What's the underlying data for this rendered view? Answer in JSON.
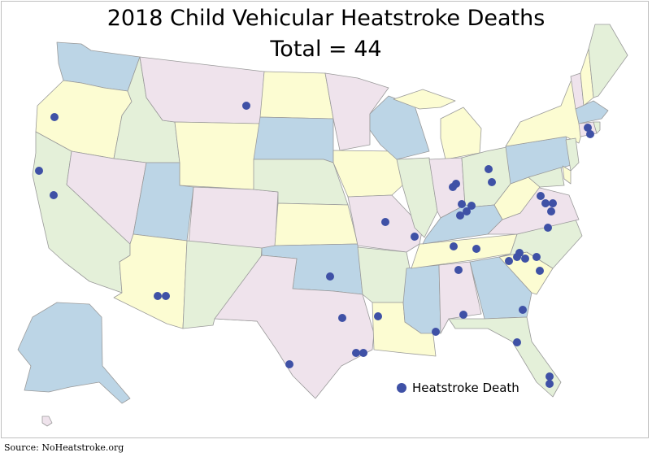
{
  "title_line1": "2018 Child Vehicular Heatstroke Deaths",
  "title_line2": "Total = 44",
  "legend_label": "Heatstroke Death",
  "source": "Source: NoHeatstroke.org",
  "colors": {
    "pink": "#efe3ec",
    "yellow": "#fcfcd2",
    "green": "#e4f0d9",
    "blue": "#bcd5e6",
    "dot": "#3f51a6",
    "border": "#9a9a9a"
  },
  "death_markers": [
    {
      "state": "Oregon"
    },
    {
      "state": "California"
    },
    {
      "state": "California"
    },
    {
      "state": "Montana"
    },
    {
      "state": "Arizona"
    },
    {
      "state": "Arizona"
    },
    {
      "state": "Oklahoma"
    },
    {
      "state": "Missouri"
    },
    {
      "state": "Missouri"
    },
    {
      "state": "Texas"
    },
    {
      "state": "Texas"
    },
    {
      "state": "Texas"
    },
    {
      "state": "Texas"
    },
    {
      "state": "Louisiana"
    },
    {
      "state": "Mississippi"
    },
    {
      "state": "Alabama"
    },
    {
      "state": "Indiana"
    },
    {
      "state": "Indiana"
    },
    {
      "state": "Ohio"
    },
    {
      "state": "Ohio"
    },
    {
      "state": "Kentucky"
    },
    {
      "state": "Kentucky"
    },
    {
      "state": "Kentucky"
    },
    {
      "state": "Kentucky"
    },
    {
      "state": "Tennessee"
    },
    {
      "state": "Tennessee"
    },
    {
      "state": "Tennessee"
    },
    {
      "state": "Virginia"
    },
    {
      "state": "Virginia"
    },
    {
      "state": "Virginia"
    },
    {
      "state": "Virginia"
    },
    {
      "state": "Virginia"
    },
    {
      "state": "North Carolina"
    },
    {
      "state": "South Carolina"
    },
    {
      "state": "South Carolina"
    },
    {
      "state": "South Carolina"
    },
    {
      "state": "South Carolina"
    },
    {
      "state": "South Carolina"
    },
    {
      "state": "Georgia"
    },
    {
      "state": "Florida"
    },
    {
      "state": "Florida"
    },
    {
      "state": "Florida"
    },
    {
      "state": "Connecticut"
    },
    {
      "state": "Connecticut"
    }
  ]
}
